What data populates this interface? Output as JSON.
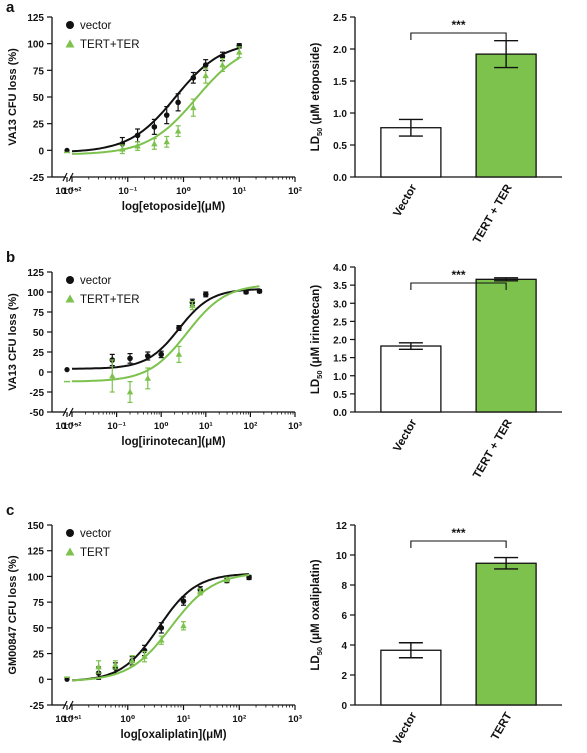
{
  "colors": {
    "vector": "#111111",
    "tert": "#7cc24d",
    "bar_tert": "#7cc24d",
    "bar_vector": "#ffffff"
  },
  "panels": [
    {
      "letter": "a",
      "curve": {
        "type": "scatter",
        "ylabel": "VA13 CFU loss (%)",
        "xlabel": "log[etoposide](μM)",
        "ylim": [
          -25,
          125
        ],
        "yticks": [
          -25,
          0,
          25,
          50,
          75,
          100,
          125
        ],
        "xbreak_label": "10⁻¹⁵",
        "xticks_exp": [
          -2,
          -1,
          0,
          1,
          2
        ],
        "xticks_label": [
          "10⁻²",
          "10⁻¹",
          "10⁰",
          "10¹",
          "10²"
        ],
        "xlim_exp": [
          -2,
          2
        ],
        "legend": {
          "position": "top-left"
        },
        "series": [
          {
            "name": "vector",
            "marker": "circle",
            "ec50": 0.72,
            "hill": 1.05,
            "bottom": -2,
            "top": 102,
            "fit_from": 0.01,
            "fit_to": 10,
            "break_point": {
              "y": 0,
              "err": 2
            },
            "x": [
              0.08,
              0.15,
              0.3,
              0.5,
              0.8,
              1.5,
              2.5,
              5,
              10
            ],
            "y": [
              6,
              14,
              22,
              33,
              45,
              68,
              80,
              88,
              98
            ],
            "err": [
              6,
              6,
              7,
              8,
              8,
              5,
              5,
              4,
              2
            ]
          },
          {
            "name": "TERT+TER",
            "marker": "triangle",
            "ec50": 1.7,
            "hill": 1.0,
            "bottom": -4,
            "top": 102,
            "fit_from": 0.01,
            "fit_to": 10,
            "break_point": {
              "y": -2,
              "err": 2
            },
            "x": [
              0.08,
              0.15,
              0.3,
              0.5,
              0.8,
              1.5,
              2.5,
              5,
              10
            ],
            "y": [
              1,
              4,
              6,
              8,
              18,
              40,
              70,
              80,
              92
            ],
            "err": [
              4,
              4,
              5,
              5,
              5,
              8,
              7,
              6,
              5
            ]
          }
        ]
      },
      "bar": {
        "type": "bar",
        "ylabel_main": "LD",
        "ylabel_sub": "50",
        "ylabel_rest": " (μM etoposide)",
        "categories": [
          "Vector",
          "TERT + TER"
        ],
        "values": [
          0.77,
          1.92
        ],
        "errors": [
          0.13,
          0.21
        ],
        "ylim": [
          0,
          2.5
        ],
        "yticks": [
          "0.0",
          "0.5",
          "1.0",
          "1.5",
          "2.0",
          "2.5"
        ],
        "significance": "***"
      }
    },
    {
      "letter": "b",
      "curve": {
        "type": "scatter",
        "ylabel": "VA13 CFU loss (%)",
        "xlabel": "log[irinotecan](μM)",
        "ylim": [
          -50,
          125
        ],
        "yticks": [
          -50,
          -25,
          0,
          25,
          50,
          75,
          100,
          125
        ],
        "xbreak_label": "10⁻¹⁵",
        "xticks_exp": [
          -2,
          -1,
          0,
          1,
          2,
          3
        ],
        "xticks_label": [
          "10⁻²",
          "10⁻¹",
          "10⁰",
          "10¹",
          "10²",
          "10³"
        ],
        "xlim_exp": [
          -2,
          3
        ],
        "legend": {
          "position": "top-left"
        },
        "series": [
          {
            "name": "vector",
            "marker": "circle",
            "ec50": 2.5,
            "hill": 1.2,
            "bottom": 4,
            "top": 104,
            "fit_from": 0.01,
            "fit_to": 160,
            "break_point": {
              "y": 3,
              "err": 3
            },
            "x": [
              0.08,
              0.2,
              0.5,
              1,
              2.5,
              5,
              10,
              80,
              160
            ],
            "y": [
              15,
              17,
              20,
              22,
              55,
              87,
              97,
              100,
              101
            ],
            "err": [
              7,
              6,
              5,
              4,
              3,
              4,
              3,
              2,
              2
            ]
          },
          {
            "name": "TERT+TER",
            "marker": "triangle",
            "ec50": 3.8,
            "hill": 1.0,
            "bottom": -12,
            "top": 110,
            "fit_from": 0.01,
            "fit_to": 160,
            "break_point": {
              "y": -12,
              "err": 0
            },
            "x": [
              0.08,
              0.2,
              0.5,
              2.5,
              5
            ],
            "y": [
              -5,
              -25,
              -8,
              22,
              83
            ],
            "err": [
              20,
              13,
              13,
              10,
              5
            ]
          }
        ]
      },
      "bar": {
        "type": "bar",
        "ylabel_main": "LD",
        "ylabel_sub": "50",
        "ylabel_rest": " (μM irinotecan)",
        "categories": [
          "Vector",
          "TERT + TER"
        ],
        "values": [
          1.82,
          3.66
        ],
        "errors": [
          0.09,
          0.04
        ],
        "ylim": [
          0,
          4
        ],
        "yticks": [
          "0.0",
          "0.5",
          "1.0",
          "1.5",
          "2.0",
          "2.5",
          "3.0",
          "3.5",
          "4.0"
        ],
        "significance": "***"
      }
    },
    {
      "letter": "c",
      "curve": {
        "type": "scatter",
        "ylabel": "GM00847 CFU loss (%)",
        "xlabel": "log[oxaliplatin](μM)",
        "ylim": [
          -25,
          150
        ],
        "yticks": [
          -25,
          0,
          25,
          50,
          75,
          100,
          125,
          150
        ],
        "xbreak_label": "10⁻¹⁵",
        "xticks_exp": [
          -1,
          0,
          1,
          2,
          3
        ],
        "xticks_label": [
          "10⁻¹",
          "10⁰",
          "10¹",
          "10²",
          "10³"
        ],
        "xlim_exp": [
          -1,
          3
        ],
        "legend": {
          "position": "top-left"
        },
        "series": [
          {
            "name": "vector",
            "marker": "circle",
            "ec50": 3.6,
            "hill": 1.3,
            "bottom": -2,
            "top": 103,
            "fit_from": 0.1,
            "fit_to": 150,
            "break_point": {
              "y": 0,
              "err": 2
            },
            "x": [
              0.3,
              0.6,
              1.2,
              2,
              4,
              10,
              20,
              60,
              150
            ],
            "y": [
              6,
              11,
              18,
              28,
              50,
              76,
              87,
              96,
              99
            ],
            "err": [
              6,
              5,
              4,
              5,
              5,
              4,
              3,
              2,
              2
            ]
          },
          {
            "name": "TERT",
            "marker": "triangle",
            "ec50": 6.0,
            "hill": 1.15,
            "bottom": -2,
            "top": 104,
            "fit_from": 0.1,
            "fit_to": 150,
            "break_point": {
              "y": 2,
              "err": 3
            },
            "x": [
              0.3,
              0.6,
              1.2,
              2,
              4,
              10,
              20,
              60
            ],
            "y": [
              12,
              14,
              18,
              22,
              38,
              52,
              85,
              97
            ],
            "err": [
              6,
              4,
              5,
              5,
              4,
              4,
              3,
              2
            ]
          }
        ]
      },
      "bar": {
        "type": "bar",
        "ylabel_main": "LD",
        "ylabel_sub": "50",
        "ylabel_rest": " (μM oxaliplatin)",
        "categories": [
          "Vector",
          "TERT"
        ],
        "values": [
          3.65,
          9.45
        ],
        "errors": [
          0.5,
          0.38
        ],
        "ylim": [
          0,
          12
        ],
        "yticks": [
          "0",
          "2",
          "4",
          "6",
          "8",
          "10",
          "12"
        ],
        "significance": "***"
      }
    }
  ]
}
